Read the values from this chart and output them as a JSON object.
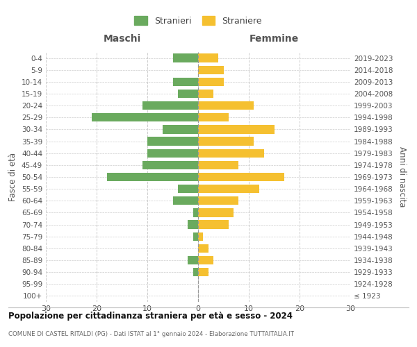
{
  "age_groups": [
    "100+",
    "95-99",
    "90-94",
    "85-89",
    "80-84",
    "75-79",
    "70-74",
    "65-69",
    "60-64",
    "55-59",
    "50-54",
    "45-49",
    "40-44",
    "35-39",
    "30-34",
    "25-29",
    "20-24",
    "15-19",
    "10-14",
    "5-9",
    "0-4"
  ],
  "birth_years": [
    "≤ 1923",
    "1924-1928",
    "1929-1933",
    "1934-1938",
    "1939-1943",
    "1944-1948",
    "1949-1953",
    "1954-1958",
    "1959-1963",
    "1964-1968",
    "1969-1973",
    "1974-1978",
    "1979-1983",
    "1984-1988",
    "1989-1993",
    "1994-1998",
    "1999-2003",
    "2004-2008",
    "2009-2013",
    "2014-2018",
    "2019-2023"
  ],
  "males": [
    0,
    0,
    1,
    2,
    0,
    1,
    2,
    1,
    5,
    4,
    18,
    11,
    10,
    10,
    7,
    21,
    11,
    4,
    5,
    0,
    5
  ],
  "females": [
    0,
    0,
    2,
    3,
    2,
    1,
    6,
    7,
    8,
    12,
    17,
    8,
    13,
    11,
    15,
    6,
    11,
    3,
    5,
    5,
    4
  ],
  "male_color": "#6aaa5e",
  "female_color": "#f5c030",
  "center_line_color": "#999999",
  "grid_color": "#cccccc",
  "bg_color": "#ffffff",
  "legend_male": "Stranieri",
  "legend_female": "Straniere",
  "header_left": "Maschi",
  "header_right": "Femmine",
  "ylabel_left": "Fasce di età",
  "ylabel_right": "Anni di nascita",
  "title_main": "Popolazione per cittadinanza straniera per età e sesso - 2024",
  "title_sub": "COMUNE DI CASTEL RITALDI (PG) - Dati ISTAT al 1° gennaio 2024 - Elaborazione TUTTAITALIA.IT",
  "xlim": 30,
  "xtick_step": 10
}
